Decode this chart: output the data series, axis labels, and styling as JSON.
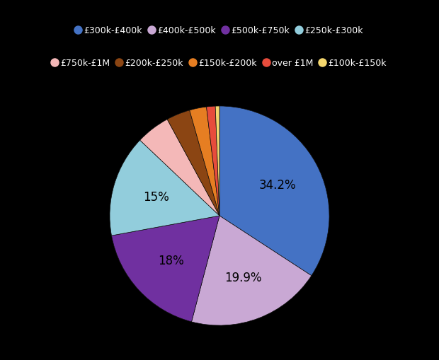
{
  "labels": [
    "£300k-£400k",
    "£400k-£500k",
    "£500k-£750k",
    "£250k-£300k",
    "£750k-£1M",
    "£200k-£250k",
    "£150k-£200k",
    "over £1M",
    "£100k-£150k"
  ],
  "values": [
    34.2,
    19.9,
    18.0,
    15.0,
    5.0,
    3.5,
    2.5,
    1.3,
    0.6
  ],
  "colors": [
    "#4472c4",
    "#c9a8d4",
    "#7030a0",
    "#92cddc",
    "#f4b8b8",
    "#8b4513",
    "#e67e22",
    "#e74c3c",
    "#f5d76e"
  ],
  "label_values": [
    "34.2%",
    "19.9%",
    "18%",
    "15%",
    "",
    "",
    "",
    "",
    ""
  ],
  "background_color": "#000000",
  "text_color": "#ffffff",
  "legend_row1": [
    "£300k-£400k",
    "£400k-£500k",
    "£500k-£750k",
    "£250k-£300k"
  ],
  "legend_row2": [
    "£750k-£1M",
    "£200k-£250k",
    "£150k-£200k",
    "over £1M",
    "£100k-£150k"
  ]
}
